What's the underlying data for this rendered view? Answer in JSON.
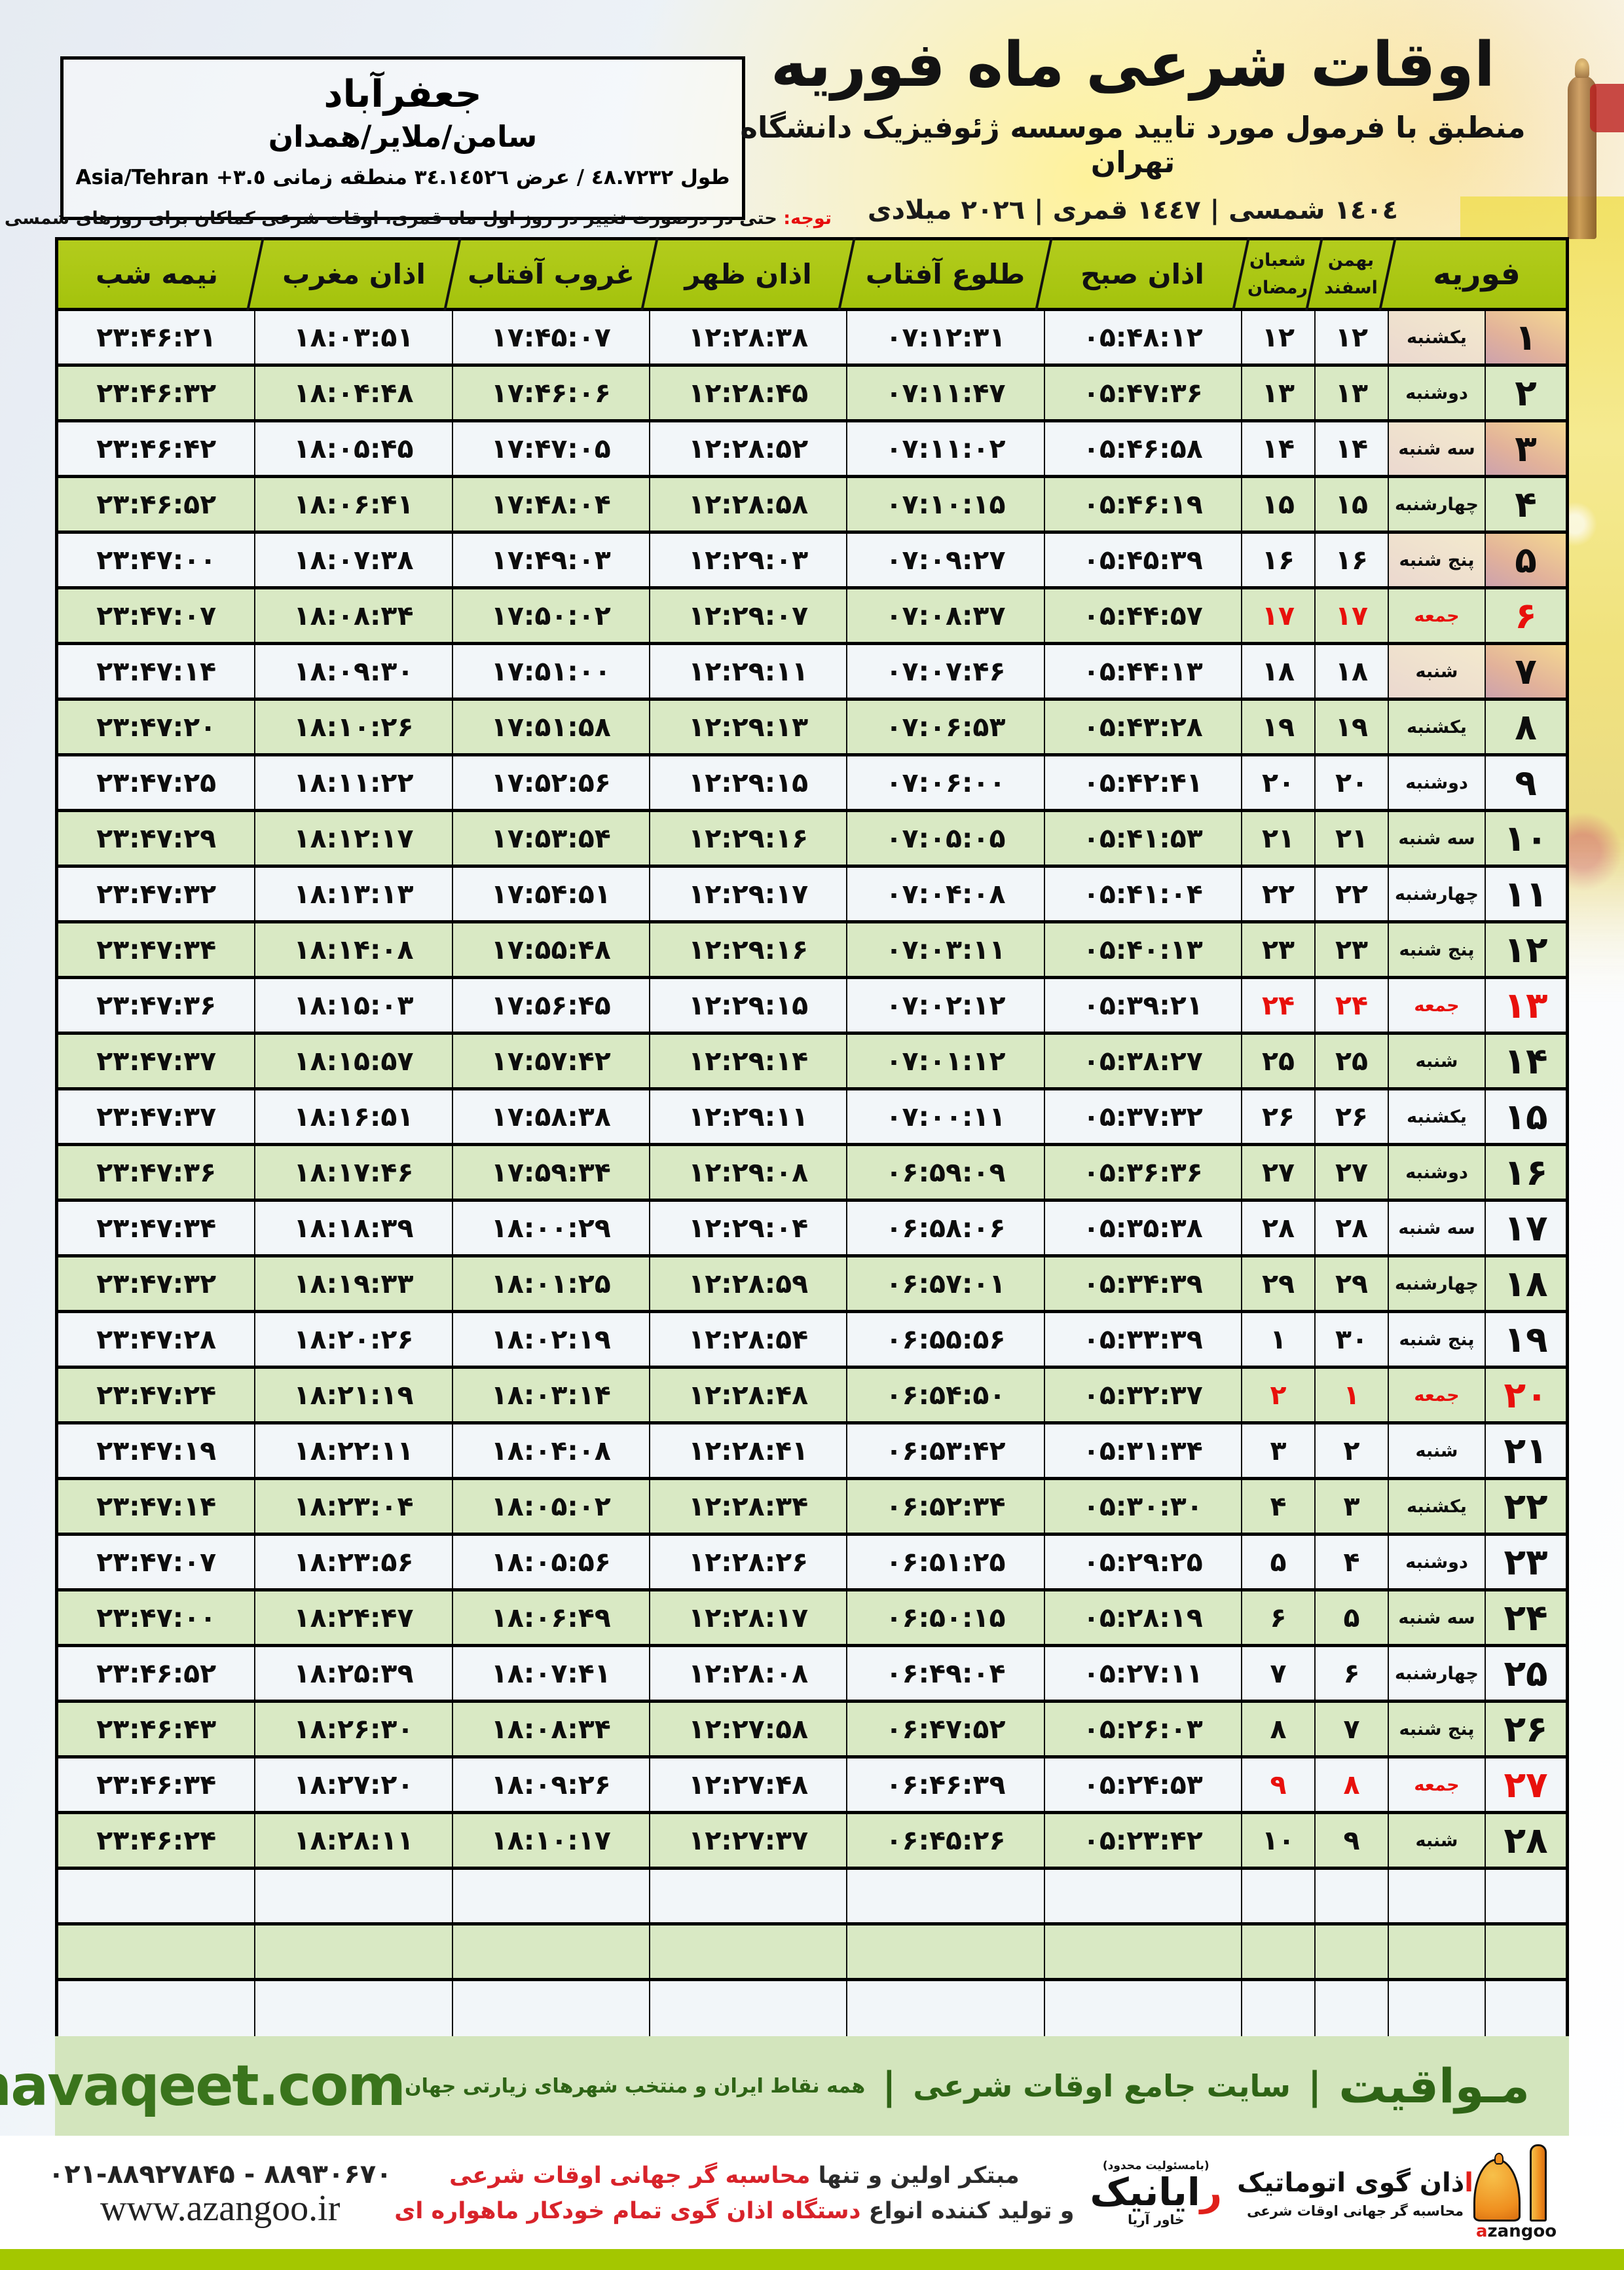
{
  "colors": {
    "header_green": "#a9c612",
    "row_green": "#d9e9c4",
    "row_white": "#f2f6f9",
    "friday_red": "#e8100c",
    "band_green": "#d3e5bd",
    "band_text_green": "#2f6416",
    "bottom_band": "#a4c700",
    "azangoo_orange": "#ef8f1f"
  },
  "location_box": {
    "city": "جعفرآباد",
    "region": "سامن/ملایر/همدان",
    "coords": "طول ٤٨.٧٢٣٢ / عرض ٣٤.١٤٥٢٦ منطقه زمانی ٣.٥+ Asia/Tehran"
  },
  "header": {
    "title": "اوقات شرعی ماه فوریه",
    "subtitle": "منطبق با فرمول مورد تایید موسسه ژئوفیزیک دانشگاه تهران",
    "years": "١٤٠٤ شمسی | ١٤٤٧ قمری | ٢٠٢٦ میلادی"
  },
  "notice": {
    "label": "توجه:",
    "text": " حتی در درصورت تغییر در روز اول ماه قمری، اوقات شرعی کماکان برای روزهای شمسی و میلادی معتبر است."
  },
  "table": {
    "columns": {
      "feb": "فوریه",
      "jalali_top": "بهمن",
      "jalali_bottom": "اسفند",
      "hijri_top": "شعبان",
      "hijri_bottom": "رمضان",
      "sobh": "اذان صبح",
      "tolu": "طلوع آفتاب",
      "zohr": "اذان ظهر",
      "ghorub": "غروب آفتاب",
      "maghreb": "اذان مغرب",
      "nimeshab": "نیمه شب"
    },
    "empty_rows": 3,
    "rows": [
      {
        "feb": "1",
        "weekday": "یکشنبه",
        "jal": "12",
        "hij": "12",
        "sobh": "05:48:12",
        "tolu": "07:12:31",
        "zohr": "12:28:38",
        "ghorub": "17:45:07",
        "maghreb": "18:03:51",
        "nim": "23:46:21",
        "friday": false
      },
      {
        "feb": "2",
        "weekday": "دوشنبه",
        "jal": "13",
        "hij": "13",
        "sobh": "05:47:36",
        "tolu": "07:11:47",
        "zohr": "12:28:45",
        "ghorub": "17:46:06",
        "maghreb": "18:04:48",
        "nim": "23:46:32",
        "friday": false
      },
      {
        "feb": "3",
        "weekday": "سه شنبه",
        "jal": "14",
        "hij": "14",
        "sobh": "05:46:58",
        "tolu": "07:11:02",
        "zohr": "12:28:52",
        "ghorub": "17:47:05",
        "maghreb": "18:05:45",
        "nim": "23:46:42",
        "friday": false
      },
      {
        "feb": "4",
        "weekday": "چهارشنبه",
        "jal": "15",
        "hij": "15",
        "sobh": "05:46:19",
        "tolu": "07:10:15",
        "zohr": "12:28:58",
        "ghorub": "17:48:04",
        "maghreb": "18:06:41",
        "nim": "23:46:52",
        "friday": false
      },
      {
        "feb": "5",
        "weekday": "پنج شنبه",
        "jal": "16",
        "hij": "16",
        "sobh": "05:45:39",
        "tolu": "07:09:27",
        "zohr": "12:29:03",
        "ghorub": "17:49:03",
        "maghreb": "18:07:38",
        "nim": "23:47:00",
        "friday": false
      },
      {
        "feb": "6",
        "weekday": "جمعه",
        "jal": "17",
        "hij": "17",
        "sobh": "05:44:57",
        "tolu": "07:08:37",
        "zohr": "12:29:07",
        "ghorub": "17:50:02",
        "maghreb": "18:08:34",
        "nim": "23:47:07",
        "friday": true
      },
      {
        "feb": "7",
        "weekday": "شنبه",
        "jal": "18",
        "hij": "18",
        "sobh": "05:44:13",
        "tolu": "07:07:46",
        "zohr": "12:29:11",
        "ghorub": "17:51:00",
        "maghreb": "18:09:30",
        "nim": "23:47:14",
        "friday": false
      },
      {
        "feb": "8",
        "weekday": "یکشنبه",
        "jal": "19",
        "hij": "19",
        "sobh": "05:43:28",
        "tolu": "07:06:53",
        "zohr": "12:29:13",
        "ghorub": "17:51:58",
        "maghreb": "18:10:26",
        "nim": "23:47:20",
        "friday": false
      },
      {
        "feb": "9",
        "weekday": "دوشنبه",
        "jal": "20",
        "hij": "20",
        "sobh": "05:42:41",
        "tolu": "07:06:00",
        "zohr": "12:29:15",
        "ghorub": "17:52:56",
        "maghreb": "18:11:22",
        "nim": "23:47:25",
        "friday": false
      },
      {
        "feb": "10",
        "weekday": "سه شنبه",
        "jal": "21",
        "hij": "21",
        "sobh": "05:41:53",
        "tolu": "07:05:05",
        "zohr": "12:29:16",
        "ghorub": "17:53:54",
        "maghreb": "18:12:17",
        "nim": "23:47:29",
        "friday": false
      },
      {
        "feb": "11",
        "weekday": "چهارشنبه",
        "jal": "22",
        "hij": "22",
        "sobh": "05:41:04",
        "tolu": "07:04:08",
        "zohr": "12:29:17",
        "ghorub": "17:54:51",
        "maghreb": "18:13:13",
        "nim": "23:47:32",
        "friday": false
      },
      {
        "feb": "12",
        "weekday": "پنج شنبه",
        "jal": "23",
        "hij": "23",
        "sobh": "05:40:13",
        "tolu": "07:03:11",
        "zohr": "12:29:16",
        "ghorub": "17:55:48",
        "maghreb": "18:14:08",
        "nim": "23:47:34",
        "friday": false
      },
      {
        "feb": "13",
        "weekday": "جمعه",
        "jal": "24",
        "hij": "24",
        "sobh": "05:39:21",
        "tolu": "07:02:12",
        "zohr": "12:29:15",
        "ghorub": "17:56:45",
        "maghreb": "18:15:03",
        "nim": "23:47:36",
        "friday": true
      },
      {
        "feb": "14",
        "weekday": "شنبه",
        "jal": "25",
        "hij": "25",
        "sobh": "05:38:27",
        "tolu": "07:01:12",
        "zohr": "12:29:14",
        "ghorub": "17:57:42",
        "maghreb": "18:15:57",
        "nim": "23:47:37",
        "friday": false
      },
      {
        "feb": "15",
        "weekday": "یکشنبه",
        "jal": "26",
        "hij": "26",
        "sobh": "05:37:32",
        "tolu": "07:00:11",
        "zohr": "12:29:11",
        "ghorub": "17:58:38",
        "maghreb": "18:16:51",
        "nim": "23:47:37",
        "friday": false
      },
      {
        "feb": "16",
        "weekday": "دوشنبه",
        "jal": "27",
        "hij": "27",
        "sobh": "05:36:36",
        "tolu": "06:59:09",
        "zohr": "12:29:08",
        "ghorub": "17:59:34",
        "maghreb": "18:17:46",
        "nim": "23:47:36",
        "friday": false
      },
      {
        "feb": "17",
        "weekday": "سه شنبه",
        "jal": "28",
        "hij": "28",
        "sobh": "05:35:38",
        "tolu": "06:58:06",
        "zohr": "12:29:04",
        "ghorub": "18:00:29",
        "maghreb": "18:18:39",
        "nim": "23:47:34",
        "friday": false
      },
      {
        "feb": "18",
        "weekday": "چهارشنبه",
        "jal": "29",
        "hij": "29",
        "sobh": "05:34:39",
        "tolu": "06:57:01",
        "zohr": "12:28:59",
        "ghorub": "18:01:25",
        "maghreb": "18:19:33",
        "nim": "23:47:32",
        "friday": false
      },
      {
        "feb": "19",
        "weekday": "پنج شنبه",
        "jal": "30",
        "hij": "1",
        "sobh": "05:33:39",
        "tolu": "06:55:56",
        "zohr": "12:28:54",
        "ghorub": "18:02:19",
        "maghreb": "18:20:26",
        "nim": "23:47:28",
        "friday": false
      },
      {
        "feb": "20",
        "weekday": "جمعه",
        "jal": "1",
        "hij": "2",
        "sobh": "05:32:37",
        "tolu": "06:54:50",
        "zohr": "12:28:48",
        "ghorub": "18:03:14",
        "maghreb": "18:21:19",
        "nim": "23:47:24",
        "friday": true
      },
      {
        "feb": "21",
        "weekday": "شنبه",
        "jal": "2",
        "hij": "3",
        "sobh": "05:31:34",
        "tolu": "06:53:42",
        "zohr": "12:28:41",
        "ghorub": "18:04:08",
        "maghreb": "18:22:11",
        "nim": "23:47:19",
        "friday": false
      },
      {
        "feb": "22",
        "weekday": "یکشنبه",
        "jal": "3",
        "hij": "4",
        "sobh": "05:30:30",
        "tolu": "06:52:34",
        "zohr": "12:28:34",
        "ghorub": "18:05:02",
        "maghreb": "18:23:04",
        "nim": "23:47:14",
        "friday": false
      },
      {
        "feb": "23",
        "weekday": "دوشنبه",
        "jal": "4",
        "hij": "5",
        "sobh": "05:29:25",
        "tolu": "06:51:25",
        "zohr": "12:28:26",
        "ghorub": "18:05:56",
        "maghreb": "18:23:56",
        "nim": "23:47:07",
        "friday": false
      },
      {
        "feb": "24",
        "weekday": "سه شنبه",
        "jal": "5",
        "hij": "6",
        "sobh": "05:28:19",
        "tolu": "06:50:15",
        "zohr": "12:28:17",
        "ghorub": "18:06:49",
        "maghreb": "18:24:47",
        "nim": "23:47:00",
        "friday": false
      },
      {
        "feb": "25",
        "weekday": "چهارشنبه",
        "jal": "6",
        "hij": "7",
        "sobh": "05:27:11",
        "tolu": "06:49:04",
        "zohr": "12:28:08",
        "ghorub": "18:07:41",
        "maghreb": "18:25:39",
        "nim": "23:46:52",
        "friday": false
      },
      {
        "feb": "26",
        "weekday": "پنج شنبه",
        "jal": "7",
        "hij": "8",
        "sobh": "05:26:03",
        "tolu": "06:47:52",
        "zohr": "12:27:58",
        "ghorub": "18:08:34",
        "maghreb": "18:26:30",
        "nim": "23:46:43",
        "friday": false
      },
      {
        "feb": "27",
        "weekday": "جمعه",
        "jal": "8",
        "hij": "9",
        "sobh": "05:24:53",
        "tolu": "06:46:39",
        "zohr": "12:27:48",
        "ghorub": "18:09:26",
        "maghreb": "18:27:20",
        "nim": "23:46:34",
        "friday": true
      },
      {
        "feb": "28",
        "weekday": "شنبه",
        "jal": "9",
        "hij": "10",
        "sobh": "05:23:42",
        "tolu": "06:45:26",
        "zohr": "12:27:37",
        "ghorub": "18:10:17",
        "maghreb": "18:28:11",
        "nim": "23:46:24",
        "friday": false
      }
    ]
  },
  "mava_band": {
    "brand": "مـواقیت",
    "separator": "|",
    "site_type": "سایت جامع اوقات شرعی",
    "coverage": "همه نقاط ایران و منتخب شهرهای زیارتی جهان",
    "domain": "mavaqeet.com"
  },
  "bottom": {
    "claim1_black": "مبتکر اولین و تنها ",
    "claim1_red": "محاسبه گر جهانی اوقات شرعی",
    "claim2_black": "و تولید کننده انواع ",
    "claim2_red": "دستگاه اذان گوی تمام خودکار ماهواره ای",
    "rayanik_note": "(بامسئولیت محدود)",
    "rayanik_first": "ر",
    "rayanik_rest": "ایانیک",
    "rayanik_side": "خاور آریا",
    "azangoo_fa_first": "ا",
    "azangoo_fa_rest": "ذان گوی اتوماتیک",
    "azangoo_sub": "محاسبه گر جهانی اوقات شرعی",
    "azangoo_latin_first": "a",
    "azangoo_latin_rest": "zangoo",
    "phones": "۰۲۱-۸۸۹۲۷۸۴۵ - ۸۸۹۳۰۶۷۰",
    "website": "www.azangoo.ir"
  }
}
